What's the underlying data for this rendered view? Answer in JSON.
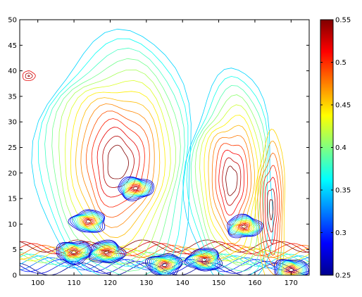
{
  "chart_data": {
    "type": "heatmap",
    "subtype": "contour",
    "title": "",
    "xlabel": "",
    "ylabel": "",
    "xlim": [
      95,
      175
    ],
    "ylim": [
      0,
      50
    ],
    "x_ticks": [
      100,
      110,
      120,
      130,
      140,
      150,
      160,
      170
    ],
    "y_ticks": [
      0,
      5,
      10,
      15,
      20,
      25,
      30,
      35,
      40,
      45,
      50
    ],
    "grid": false,
    "colormap": "jet",
    "colorbar": {
      "min": 0.25,
      "max": 0.55,
      "ticks": [
        0.25,
        0.3,
        0.35,
        0.4,
        0.45,
        0.5,
        0.55
      ],
      "tick_labels": [
        "0.25",
        "0.3",
        "0.35",
        "0.4",
        "0.45",
        "0.5",
        "0.55"
      ],
      "colors": [
        "#00008f",
        "#0000ff",
        "#0080ff",
        "#00ffff",
        "#80ff80",
        "#ffff00",
        "#ff8000",
        "#ff0000",
        "#800000"
      ]
    },
    "features": [
      {
        "name": "base-ridge",
        "x": [
          95,
          175
        ],
        "y_center": 2,
        "level": 0.52
      },
      {
        "name": "main-peak",
        "x": [
          103,
          141
        ],
        "y_peak": 44,
        "level": 0.45
      },
      {
        "name": "minimum-1",
        "x": 110,
        "y": 4.5,
        "level": 0.26
      },
      {
        "name": "minimum-2",
        "x": 114,
        "y": 10.5,
        "level": 0.27
      },
      {
        "name": "minimum-3",
        "x": 119,
        "y": 4.5,
        "level": 0.26
      },
      {
        "name": "minimum-4",
        "x": 127,
        "y": 17,
        "level": 0.27
      },
      {
        "name": "minimum-5",
        "x": 135,
        "y": 2,
        "level": 0.25
      },
      {
        "name": "minimum-6",
        "x": 146,
        "y": 3,
        "level": 0.26
      },
      {
        "name": "minimum-7",
        "x": 157,
        "y": 9.5,
        "level": 0.27
      },
      {
        "name": "minimum-8",
        "x": 170,
        "y": 1,
        "level": 0.26
      },
      {
        "name": "right-ridge",
        "x": [
          143,
          164
        ],
        "y_peak": 37,
        "level": 0.45
      },
      {
        "name": "far-right-ridge",
        "x": [
          161,
          168
        ],
        "y_peak": 26,
        "level": 0.5
      },
      {
        "name": "left-island",
        "x": [
          96,
          99
        ],
        "y": 39,
        "level": 0.55
      }
    ]
  }
}
